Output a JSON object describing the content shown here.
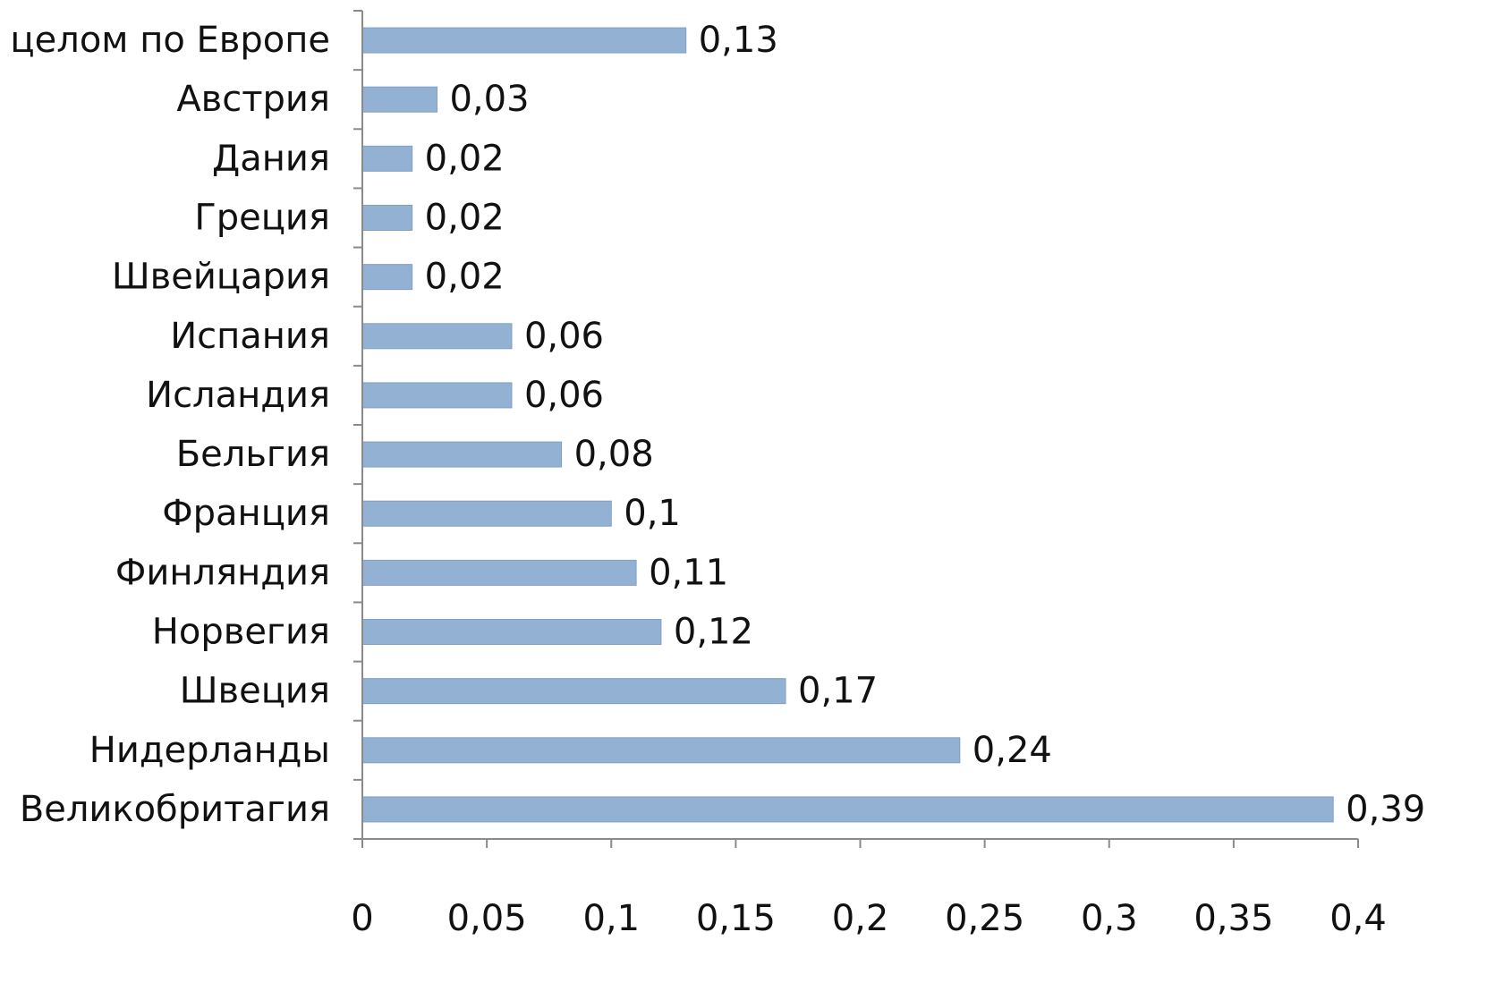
{
  "chart_data": {
    "type": "bar",
    "orientation": "horizontal",
    "categories": [
      "В целом по Европе",
      "Австрия",
      "Дания",
      "Греция",
      "Швейцария",
      "Испания",
      "Исландия",
      "Бельгия",
      "Франция",
      "Финляндия",
      "Норвегия",
      "Швеция",
      "Нидерланды",
      "Великобритагия"
    ],
    "values": [
      0.13,
      0.03,
      0.02,
      0.02,
      0.02,
      0.06,
      0.06,
      0.08,
      0.1,
      0.11,
      0.12,
      0.17,
      0.24,
      0.39
    ],
    "value_labels": [
      "0,13",
      "0,03",
      "0,02",
      "0,02",
      "0,02",
      "0,06",
      "0,06",
      "0,08",
      "0,1",
      "0,11",
      "0,12",
      "0,17",
      "0,24",
      "0,39"
    ],
    "xlim": [
      0,
      0.4
    ],
    "x_ticks": [
      0,
      0.05,
      0.1,
      0.15,
      0.2,
      0.25,
      0.3,
      0.35,
      0.4
    ],
    "x_tick_labels": [
      "0",
      "0,05",
      "0,1",
      "0,15",
      "0,2",
      "0,25",
      "0,3",
      "0,35",
      "0,4"
    ],
    "title": "",
    "xlabel": "",
    "ylabel": "",
    "grid": false,
    "legend": "none",
    "colors": {
      "bar": "#93b1d3",
      "axis": "#8a8a8a",
      "text": "#111111"
    }
  }
}
